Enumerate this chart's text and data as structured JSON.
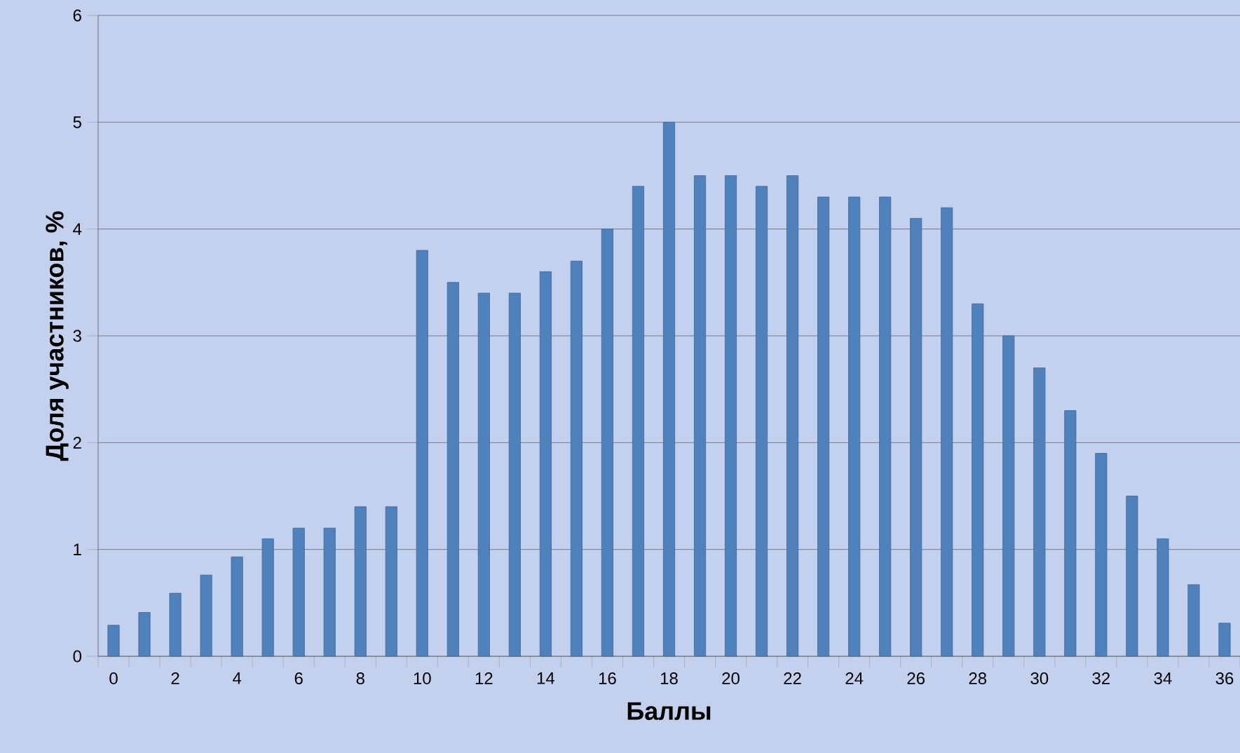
{
  "chart_data": {
    "type": "bar",
    "xlabel": "Баллы",
    "ylabel": "Доля участников, %",
    "categories": [
      "0",
      null,
      "2",
      null,
      "4",
      null,
      "6",
      null,
      "8",
      null,
      "10",
      null,
      "12",
      null,
      "14",
      null,
      "16",
      null,
      "18",
      null,
      "20",
      null,
      "22",
      null,
      "24",
      null,
      "26",
      null,
      "28",
      null,
      "30",
      null,
      "32",
      null,
      "34",
      null,
      "36"
    ],
    "values": [
      0.29,
      0.41,
      0.59,
      0.76,
      0.93,
      1.1,
      1.2,
      1.2,
      1.4,
      1.4,
      3.8,
      3.5,
      3.4,
      3.4,
      3.6,
      3.7,
      4.0,
      4.4,
      5.0,
      4.5,
      4.5,
      4.4,
      4.5,
      4.3,
      4.3,
      4.3,
      4.1,
      4.2,
      3.3,
      3.0,
      2.7,
      2.3,
      1.9,
      1.5,
      1.1,
      0.67,
      0.31
    ],
    "color": "#4f81bd",
    "ylim": [
      0,
      6
    ],
    "yticks": [
      0,
      1,
      2,
      3,
      4,
      5,
      6
    ],
    "grid": "y"
  }
}
